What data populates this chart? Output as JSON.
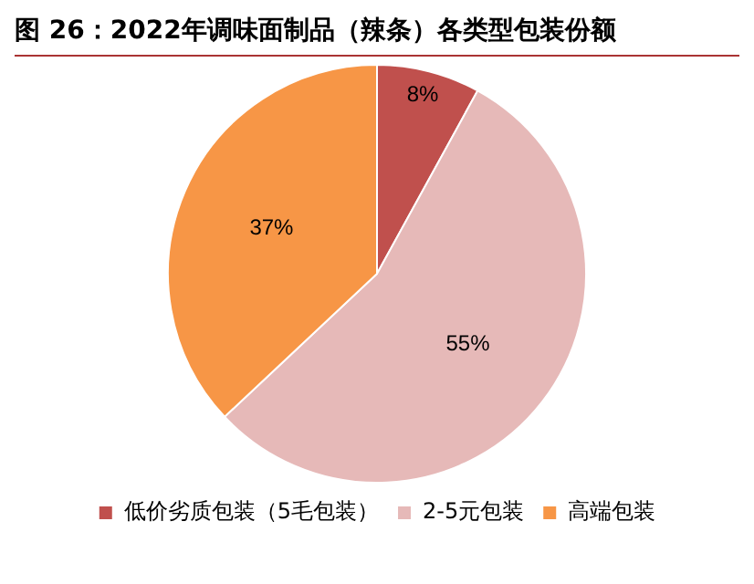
{
  "chart_data": {
    "type": "pie",
    "title": "图 26：2022年调味面制品（辣条）各类型包装份额",
    "categories": [
      "低价劣质包装（5毛包装）",
      "2-5元包装",
      "高端包装"
    ],
    "values": [
      8,
      55,
      37
    ],
    "colors": [
      "#c0504d",
      "#e6b9b8",
      "#f79646"
    ],
    "value_labels": [
      "8%",
      "55%",
      "37%"
    ],
    "legend": "bottom"
  }
}
